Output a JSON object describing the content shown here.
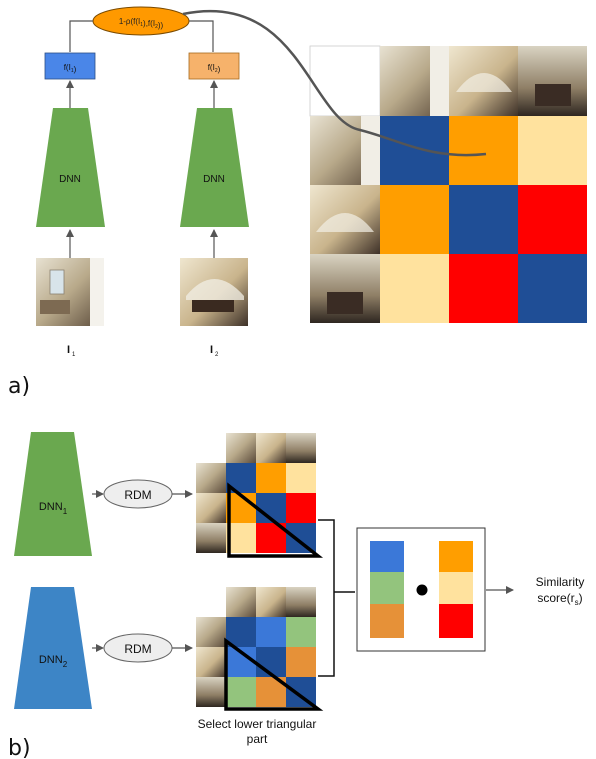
{
  "panel_a": {
    "label": "a)",
    "similarity_formula": "1-ρ(f(I1),f(I2))",
    "feature_1": "f(I1)",
    "feature_2": "f(I2)",
    "network_1": "DNN",
    "network_2": "DNN",
    "input_1": "I1",
    "input_2": "I2",
    "rdm_colors": [
      [
        "#1f4e96",
        "#ff9e00",
        "#ffe29e"
      ],
      [
        "#ff9e00",
        "#1f4e96",
        "#ff0000"
      ],
      [
        "#ffe29e",
        "#ff0000",
        "#1f4e96"
      ]
    ]
  },
  "panel_b": {
    "label": "b)",
    "network_1": "DNN1",
    "network_2": "DNN2",
    "rdm_label_1": "RDM",
    "rdm_label_2": "RDM",
    "select_caption_line1": "Select lower triangular",
    "select_caption_line2": "part",
    "output_label_line1": "Similarity",
    "output_label_line2": "score(rs)",
    "rdm1_colors": [
      [
        "#1f4e96",
        "#ff9e00",
        "#ffe29e"
      ],
      [
        "#ff9e00",
        "#1f4e96",
        "#ff0000"
      ],
      [
        "#ffe29e",
        "#ff0000",
        "#1f4e96"
      ]
    ],
    "rdm2_colors": [
      [
        "#1f4e96",
        "#3b78d8",
        "#93c47d"
      ],
      [
        "#3b78d8",
        "#1f4e96",
        "#e69138"
      ],
      [
        "#93c47d",
        "#e69138",
        "#1f4e96"
      ]
    ],
    "vector_1_colors": [
      "#3b78d8",
      "#93c47d",
      "#e69138"
    ],
    "vector_2_colors": [
      "#ff9e00",
      "#ffe29e",
      "#ff0000"
    ]
  },
  "colors": {
    "dnn_green": "#6aa84f",
    "dnn_blue": "#3d85c6",
    "feature_blue": "#4a86e8",
    "feature_orange": "#f6b26b",
    "formula_orange": "#ff9900",
    "rdm_ellipse": "#eeeeee"
  }
}
